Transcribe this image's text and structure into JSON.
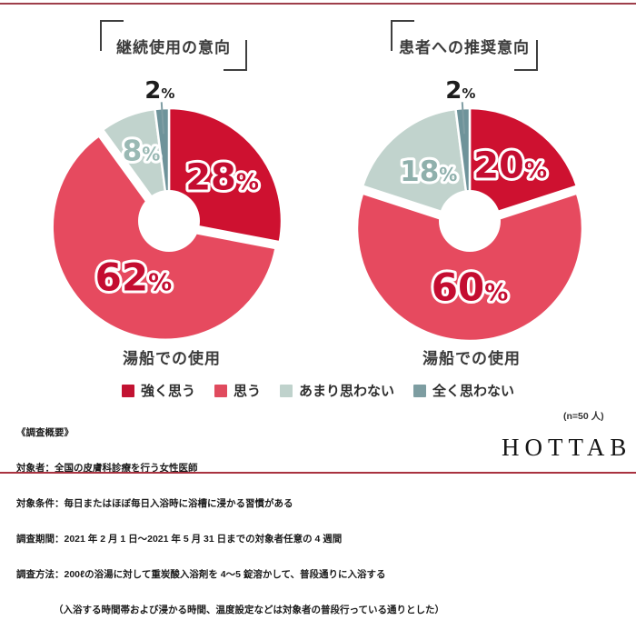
{
  "chart_data": [
    {
      "type": "pie",
      "donut": true,
      "title": "継続使用の意向",
      "subtitle": "湯船での使用",
      "categories": [
        "強く思う",
        "思う",
        "あまり思わない",
        "全く思わない"
      ],
      "values": [
        28,
        62,
        8,
        2
      ],
      "value_labels": [
        "28%",
        "62%",
        "8%",
        "2%"
      ],
      "slice_colors": [
        "#ce1130",
        "#e64a5f",
        "#c1d3cd",
        "#6e939a"
      ],
      "value_label_colors": [
        "#c40d31",
        "#c40d31",
        "#9ab9b4"
      ],
      "callout_label_color": "#1d1d1d",
      "callout_line_color": "#7f9da3",
      "legend_position": "bottom"
    },
    {
      "type": "pie",
      "donut": true,
      "title": "患者への推奨意向",
      "subtitle": "湯船での使用",
      "categories": [
        "強く思う",
        "思う",
        "あまり思わない",
        "全く思わない"
      ],
      "values": [
        20,
        60,
        18,
        2
      ],
      "value_labels": [
        "20%",
        "60%",
        "18%",
        "2%"
      ],
      "slice_colors": [
        "#ce1130",
        "#e64a5f",
        "#c1d3cd",
        "#6e939a"
      ],
      "value_label_colors": [
        "#c40d31",
        "#c40d31",
        "#8fb0ac"
      ],
      "callout_label_color": "#1d1d1d",
      "callout_line_color": "#7f9da3",
      "legend_position": "bottom"
    }
  ],
  "legend": {
    "items": [
      {
        "label": "強く思う",
        "color": "#c21332"
      },
      {
        "label": "思う",
        "color": "#e04b5e"
      },
      {
        "label": "あまり思わない",
        "color": "#bfd2cc"
      },
      {
        "label": "全く思わない",
        "color": "#7d9da1"
      }
    ]
  },
  "footer": {
    "lines": [
      "《調査概要》",
      "対象者：全国の皮膚科診療を行う女性医師",
      "対象条件：毎日またはほぼ毎日入浴時に浴槽に浸かる習慣がある",
      "調査期間：2021 年 2 月 1 日〜2021 年 5 月 31 日までの対象者任意の 4 週間",
      "調査方法：200ℓの浴湯に対して重炭酸入浴剤を 4〜5 錠溶かして、普段通りに入浴する",
      "（入浴する時間帯および浸かる時間、温度設定などは対象者の普段行っている通りとした）"
    ]
  },
  "meta": {
    "sample_size": "(n=50 人)",
    "brand": "HOTTAB",
    "accent_top_line": "#9e3e4a",
    "accent_bottom_line": "#a93240"
  }
}
